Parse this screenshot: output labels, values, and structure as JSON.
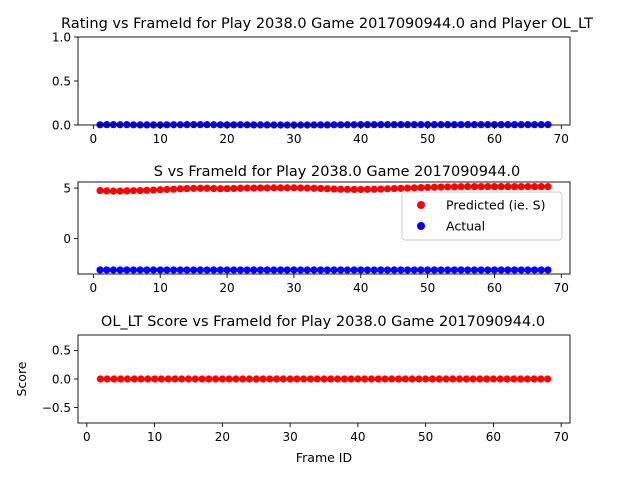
{
  "chart_data": [
    {
      "type": "scatter",
      "title": "Rating vs FrameId for Play 2038.0 Game 2017090944.0 and Player OL_LT",
      "xlabel": "",
      "ylabel": "",
      "xlim": [
        -2.3,
        71.3
      ],
      "ylim": [
        0,
        1.0
      ],
      "xticks": [
        0,
        10,
        20,
        30,
        40,
        50,
        60,
        70
      ],
      "yticks": [
        0.0,
        0.5,
        1.0
      ],
      "ytick_labels": [
        "0.0",
        "0.5",
        "1.0"
      ],
      "series": [
        {
          "color": "#0000ff",
          "x": [
            1,
            2,
            3,
            4,
            5,
            6,
            7,
            8,
            9,
            10,
            11,
            12,
            13,
            14,
            15,
            16,
            17,
            18,
            19,
            20,
            21,
            22,
            23,
            24,
            25,
            26,
            27,
            28,
            29,
            30,
            31,
            32,
            33,
            34,
            35,
            36,
            37,
            38,
            39,
            40,
            41,
            42,
            43,
            44,
            45,
            46,
            47,
            48,
            49,
            50,
            51,
            52,
            53,
            54,
            55,
            56,
            57,
            58,
            59,
            60,
            61,
            62,
            63,
            64,
            65,
            66,
            67,
            68
          ],
          "y": [
            0.002,
            0.004,
            0.004,
            0.003,
            0.004,
            0.002,
            0.001,
            0.001,
            0.001,
            0.001,
            0.002,
            0.003,
            0.003,
            0.004,
            0.004,
            0.004,
            0.004,
            0.003,
            0.002,
            0.002,
            0.002,
            0.003,
            0.002,
            0.001,
            0.001,
            0.001,
            0.0,
            0.0,
            0.0,
            0.0,
            0.0,
            0.0,
            0.001,
            0.001,
            0.001,
            0.002,
            0.002,
            0.003,
            0.003,
            0.004,
            0.004,
            0.004,
            0.004,
            0.004,
            0.004,
            0.004,
            0.004,
            0.004,
            0.004,
            0.004,
            0.004,
            0.004,
            0.004,
            0.004,
            0.004,
            0.004,
            0.004,
            0.004,
            0.004,
            0.004,
            0.004,
            0.004,
            0.004,
            0.004,
            0.004,
            0.004,
            0.004,
            0.004
          ]
        }
      ]
    },
    {
      "type": "scatter",
      "title": "S vs FrameId for Play 2038.0 Game 2017090944.0",
      "xlabel": "",
      "ylabel": "",
      "xlim": [
        -2.3,
        71.3
      ],
      "ylim": [
        -3.5,
        5.6
      ],
      "xticks": [
        0,
        10,
        20,
        30,
        40,
        50,
        60,
        70
      ],
      "yticks": [
        0,
        5
      ],
      "ytick_labels": [
        "0",
        "5"
      ],
      "legend": "center-right",
      "series": [
        {
          "name": "Predicted (ie. S)",
          "color": "#ff0000",
          "x": [
            1,
            2,
            3,
            4,
            5,
            6,
            7,
            8,
            9,
            10,
            11,
            12,
            13,
            14,
            15,
            16,
            17,
            18,
            19,
            20,
            21,
            22,
            23,
            24,
            25,
            26,
            27,
            28,
            29,
            30,
            31,
            32,
            33,
            34,
            35,
            36,
            37,
            38,
            39,
            40,
            41,
            42,
            43,
            44,
            45,
            46,
            47,
            48,
            49,
            50,
            51,
            52,
            53,
            54,
            55,
            56,
            57,
            58,
            59,
            60,
            61,
            62,
            63,
            64,
            65,
            66,
            67,
            68
          ],
          "y": [
            4.75,
            4.72,
            4.7,
            4.7,
            4.72,
            4.74,
            4.75,
            4.78,
            4.8,
            4.83,
            4.86,
            4.89,
            4.92,
            4.95,
            4.97,
            4.98,
            4.98,
            4.95,
            4.93,
            4.94,
            4.96,
            4.98,
            5.0,
            5.0,
            5.01,
            5.01,
            5.02,
            5.02,
            5.02,
            5.02,
            5.01,
            5.0,
            4.98,
            4.96,
            4.93,
            4.9,
            4.88,
            4.87,
            4.86,
            4.86,
            4.87,
            4.88,
            4.9,
            4.92,
            4.95,
            4.97,
            5.0,
            5.02,
            5.04,
            5.06,
            5.08,
            5.1,
            5.11,
            5.12,
            5.13,
            5.14,
            5.14,
            5.14,
            5.14,
            5.14,
            5.14,
            5.14,
            5.14,
            5.14,
            5.14,
            5.14,
            5.14,
            5.14
          ]
        },
        {
          "name": "Actual",
          "color": "#0000ff",
          "x": [
            1,
            2,
            3,
            4,
            5,
            6,
            7,
            8,
            9,
            10,
            11,
            12,
            13,
            14,
            15,
            16,
            17,
            18,
            19,
            20,
            21,
            22,
            23,
            24,
            25,
            26,
            27,
            28,
            29,
            30,
            31,
            32,
            33,
            34,
            35,
            36,
            37,
            38,
            39,
            40,
            41,
            42,
            43,
            44,
            45,
            46,
            47,
            48,
            49,
            50,
            51,
            52,
            53,
            54,
            55,
            56,
            57,
            58,
            59,
            60,
            61,
            62,
            63,
            64,
            65,
            66,
            67,
            68
          ],
          "y": [
            -3.1,
            -3.1,
            -3.1,
            -3.1,
            -3.1,
            -3.1,
            -3.1,
            -3.1,
            -3.1,
            -3.1,
            -3.1,
            -3.1,
            -3.1,
            -3.1,
            -3.1,
            -3.1,
            -3.1,
            -3.1,
            -3.1,
            -3.1,
            -3.1,
            -3.1,
            -3.1,
            -3.1,
            -3.1,
            -3.1,
            -3.1,
            -3.1,
            -3.1,
            -3.1,
            -3.1,
            -3.1,
            -3.1,
            -3.1,
            -3.1,
            -3.1,
            -3.1,
            -3.1,
            -3.1,
            -3.1,
            -3.1,
            -3.1,
            -3.1,
            -3.1,
            -3.1,
            -3.1,
            -3.1,
            -3.1,
            -3.1,
            -3.1,
            -3.1,
            -3.1,
            -3.1,
            -3.1,
            -3.1,
            -3.1,
            -3.1,
            -3.1,
            -3.1,
            -3.1,
            -3.1,
            -3.1,
            -3.1,
            -3.1,
            -3.1,
            -3.1,
            -3.1,
            -3.1
          ]
        }
      ]
    },
    {
      "type": "scatter",
      "title": "OL_LT Score vs FrameId for Play 2038.0 Game 2017090944.0",
      "xlabel": "Frame ID",
      "ylabel": "Score",
      "xlim": [
        -1.3,
        71.3
      ],
      "ylim": [
        -0.77,
        0.77
      ],
      "xticks": [
        0,
        10,
        20,
        30,
        40,
        50,
        60,
        70
      ],
      "yticks": [
        -0.5,
        0.0,
        0.5
      ],
      "ytick_labels": [
        "−0.5",
        "0.0",
        "0.5"
      ],
      "series": [
        {
          "color": "#ff0000",
          "x": [
            2,
            3,
            4,
            5,
            6,
            7,
            8,
            9,
            10,
            11,
            12,
            13,
            14,
            15,
            16,
            17,
            18,
            19,
            20,
            21,
            22,
            23,
            24,
            25,
            26,
            27,
            28,
            29,
            30,
            31,
            32,
            33,
            34,
            35,
            36,
            37,
            38,
            39,
            40,
            41,
            42,
            43,
            44,
            45,
            46,
            47,
            48,
            49,
            50,
            51,
            52,
            53,
            54,
            55,
            56,
            57,
            58,
            59,
            60,
            61,
            62,
            63,
            64,
            65,
            66,
            67,
            68
          ],
          "y": [
            0,
            0,
            0,
            0,
            0,
            0,
            0,
            0,
            0,
            0,
            0,
            0,
            0,
            0,
            0,
            0,
            0,
            0,
            0,
            0,
            0,
            0,
            0,
            0,
            0,
            0,
            0,
            0,
            0,
            0,
            0,
            0,
            0,
            0,
            0,
            0,
            0,
            0,
            0,
            0,
            0,
            0,
            0,
            0,
            0,
            0,
            0,
            0,
            0,
            0,
            0,
            0,
            0,
            0,
            0,
            0,
            0,
            0,
            0,
            0,
            0,
            0,
            0,
            0,
            0,
            0,
            0
          ]
        }
      ]
    }
  ]
}
